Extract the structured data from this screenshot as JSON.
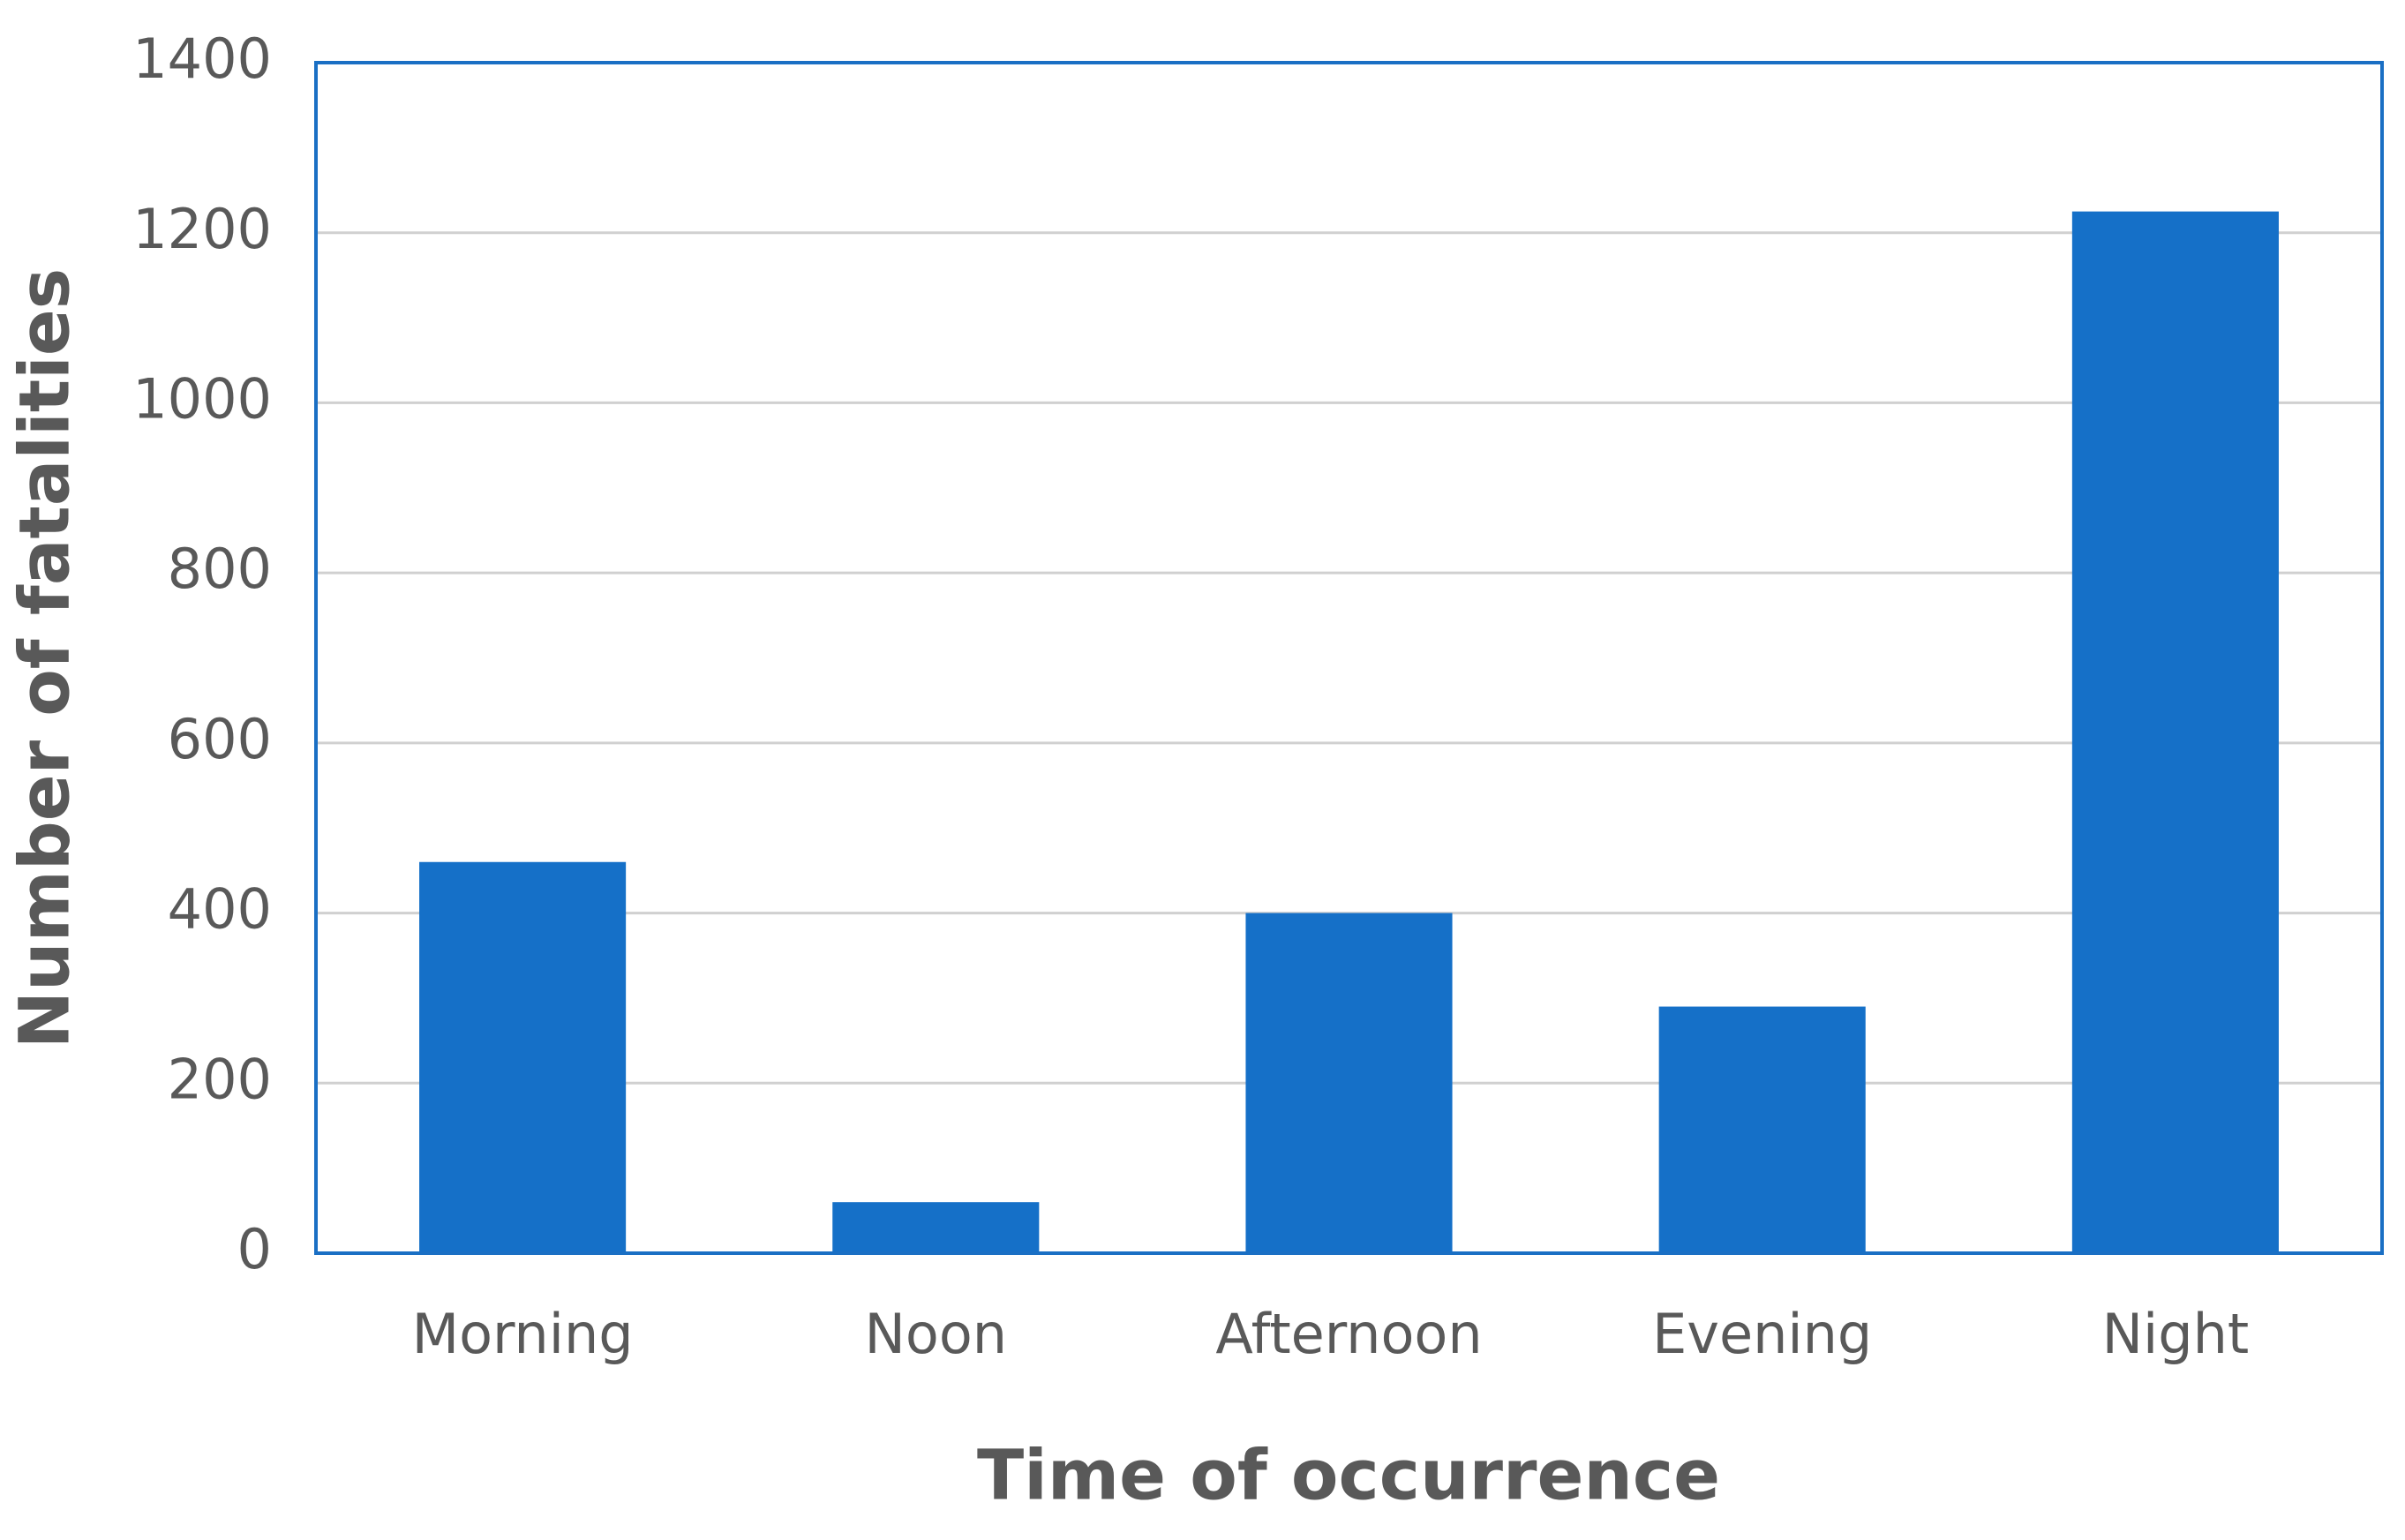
{
  "chart_data": {
    "type": "bar",
    "x_label": "Time of occurrence",
    "y_label": "Number of fatalities",
    "categories": [
      "Morning",
      "Noon",
      "Afternoon",
      "Evening",
      "Night"
    ],
    "values": [
      460,
      60,
      400,
      290,
      1225
    ],
    "color": "#1570c8",
    "ylim": [
      0,
      1400
    ],
    "yticks": [
      0,
      200,
      400,
      600,
      800,
      1000,
      1200,
      1400
    ],
    "grid": true
  }
}
